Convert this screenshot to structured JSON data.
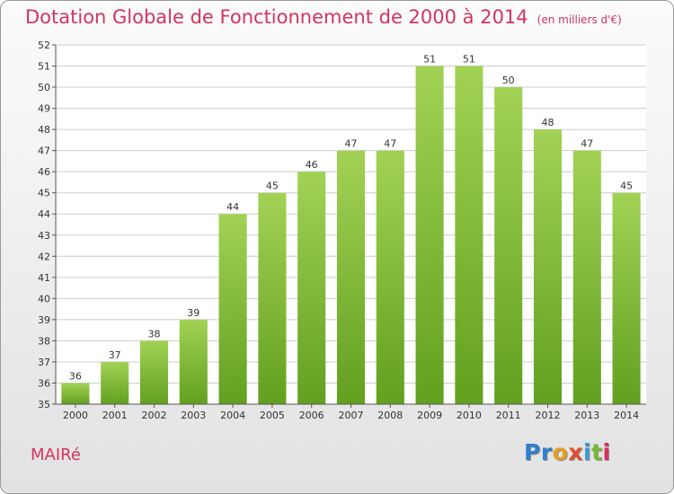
{
  "chart_data": {
    "type": "bar",
    "title": "Dotation Globale de Fonctionnement de 2000 à 2014",
    "subtitle": "(en milliers d'€)",
    "categories": [
      "2000",
      "2001",
      "2002",
      "2003",
      "2004",
      "2005",
      "2006",
      "2007",
      "2008",
      "2009",
      "2010",
      "2011",
      "2012",
      "2013",
      "2014"
    ],
    "values": [
      36,
      37,
      38,
      39,
      44,
      45,
      46,
      47,
      47,
      51,
      51,
      50,
      48,
      47,
      45
    ],
    "ylim": [
      35,
      52
    ],
    "yticks": [
      35,
      36,
      37,
      38,
      39,
      40,
      41,
      42,
      43,
      44,
      45,
      46,
      47,
      48,
      49,
      50,
      51,
      52
    ],
    "grid": true,
    "colors": {
      "bar_light": "#a2d255",
      "bar_dark": "#62a020",
      "grid": "#cccccc",
      "title": "#d4345c"
    }
  },
  "footer": {
    "commune": "MAIRé",
    "logo": [
      "Pr",
      "o",
      "x",
      "i",
      "t",
      "i"
    ]
  }
}
